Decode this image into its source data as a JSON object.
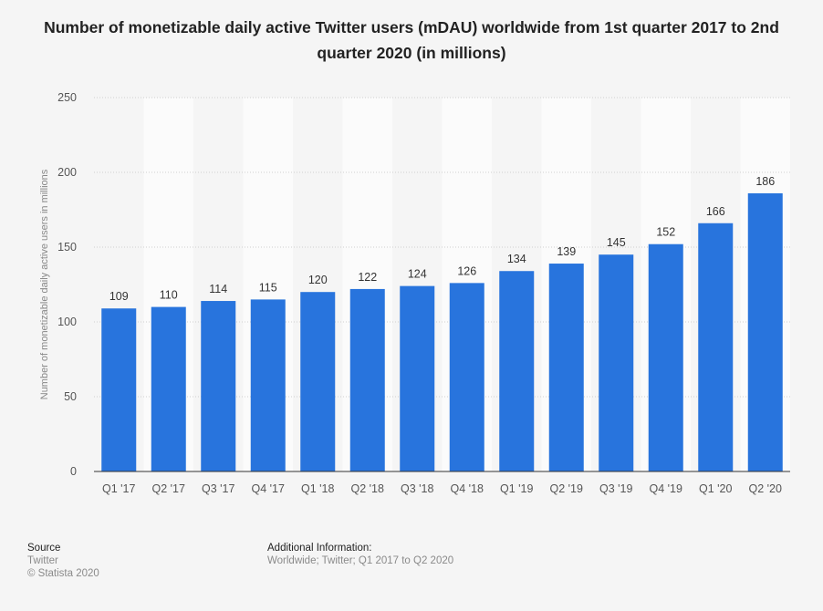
{
  "chart_data": {
    "type": "bar",
    "title": "Number of monetizable daily active Twitter users (mDAU) worldwide from 1st quarter 2017 to 2nd quarter 2020 (in millions)",
    "xlabel": "",
    "ylabel": "Number of monetizable daily active users in millions",
    "categories": [
      "Q1 '17",
      "Q2 '17",
      "Q3 '17",
      "Q4 '17",
      "Q1 '18",
      "Q2 '18",
      "Q3 '18",
      "Q4 '18",
      "Q1 '19",
      "Q2 '19",
      "Q3 '19",
      "Q4 '19",
      "Q1 '20",
      "Q2 '20"
    ],
    "values": [
      109,
      110,
      114,
      115,
      120,
      122,
      124,
      126,
      134,
      139,
      145,
      152,
      166,
      186
    ],
    "ylim": [
      0,
      250
    ],
    "yticks": [
      0,
      50,
      100,
      150,
      200,
      250
    ],
    "grid": true,
    "data_labels": true,
    "colors": {
      "bar": "#2874dd"
    }
  },
  "footer": {
    "source_heading": "Source",
    "source": "Twitter",
    "copyright": "© Statista 2020",
    "info_heading": "Additional Information:",
    "info": "Worldwide; Twitter; Q1 2017 to Q2 2020"
  }
}
